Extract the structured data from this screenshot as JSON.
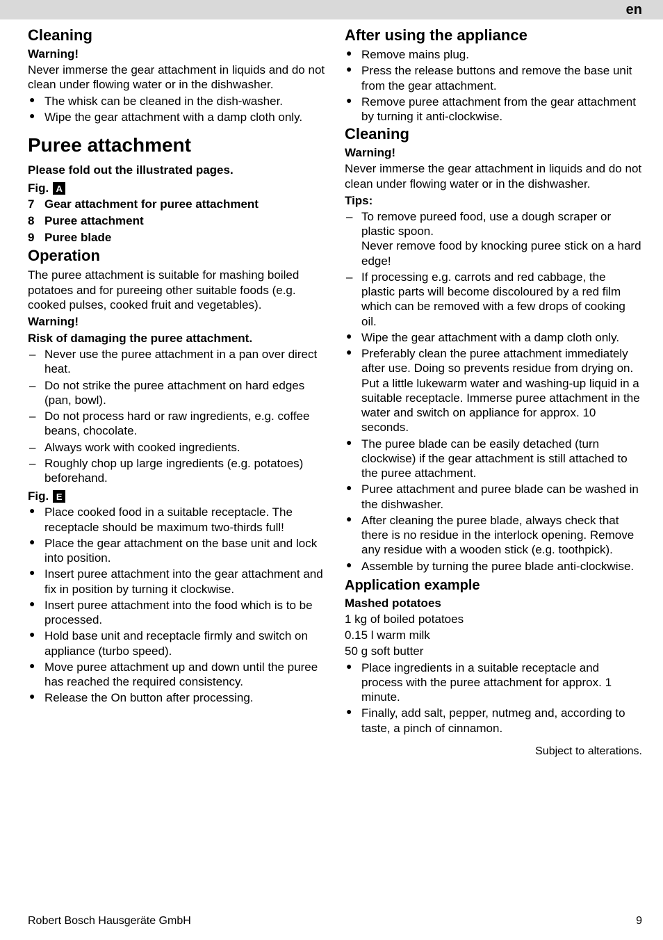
{
  "header": {
    "lang": "en"
  },
  "left": {
    "cleaning_h": "Cleaning",
    "warning_h": "Warning!",
    "cleaning_p": "Never immerse the gear attachment in liquids and do not clean under flowing water or in the dishwasher.",
    "cleaning_b1": "The whisk can be cleaned in the dish-washer.",
    "cleaning_b2": "Wipe the gear attachment with a damp cloth only.",
    "puree_h": "Puree attachment",
    "fold_p": "Please fold out the illustrated pages.",
    "fig_a": "Fig.",
    "fig_a_letter": "A",
    "item7_n": "7",
    "item7": "Gear attachment for puree attachment",
    "item8_n": "8",
    "item8": "Puree attachment",
    "item9_n": "9",
    "item9": "Puree blade",
    "operation_h": "Operation",
    "operation_p": "The puree attachment is suitable for mashing boiled potatoes and for pureeing other suitable foods (e.g. cooked pulses, cooked fruit and vegetables).",
    "warning2_h": "Warning!",
    "risk_p": "Risk of damaging the puree attachment.",
    "risk_d1": "Never use the puree attachment in a pan over direct heat.",
    "risk_d2": "Do not strike the puree attachment on hard edges (pan, bowl).",
    "risk_d3": "Do not process hard or raw ingredients, e.g. coffee beans, chocolate.",
    "risk_d4": "Always work with cooked ingredients.",
    "risk_d5": "Roughly chop up large ingredients (e.g. potatoes) beforehand.",
    "fig_e": "Fig.",
    "fig_e_letter": "E",
    "op_b1": "Place cooked food in a suitable receptacle. The receptacle should be maximum two-thirds full!",
    "op_b2": "Place the gear attachment on the base unit and lock into position.",
    "op_b3": "Insert puree attachment into the gear attachment and fix in position by turning it clockwise.",
    "op_b4": "Insert puree attachment into the food which is to be processed.",
    "op_b5": "Hold base unit and receptacle firmly and switch on appliance (turbo speed).",
    "op_b6": "Move puree attachment up and down until the puree has reached the required consistency.",
    "op_b7": "Release the On button after processing."
  },
  "right": {
    "after_h": "After using the appliance",
    "after_b1": "Remove mains plug.",
    "after_b2": "Press the release buttons and remove the base unit from the gear attachment.",
    "after_b3": "Remove puree attachment from the gear attachment by turning it anti-clockwise.",
    "cleaning2_h": "Cleaning",
    "warning3_h": "Warning!",
    "cleaning2_p": "Never immerse the gear attachment in liquids and do not clean under flowing water or in the dishwasher.",
    "tips_h": "Tips:",
    "tip_d1a": "To remove pureed food, use a dough scraper or plastic spoon.",
    "tip_d1b": "Never remove food by knocking puree stick on a hard edge!",
    "tip_d2": "If processing e.g. carrots and red cabbage, the plastic parts will become discoloured by a red film which can be removed with a few drops of cooking oil.",
    "tip_b1": "Wipe the gear attachment with a damp cloth only.",
    "tip_b2a": "Preferably clean the puree attachment immediately after use. Doing so prevents residue from drying on.",
    "tip_b2b": "Put a little lukewarm water and washing-up liquid in a suitable receptacle. Immerse puree attachment in the water and switch on appliance for approx. 10 seconds.",
    "tip_b3": "The puree blade can be easily detached (turn clockwise) if the gear attachment is still attached to the puree attachment.",
    "tip_b4": "Puree attachment and puree blade can be washed in the dishwasher.",
    "tip_b5": "After cleaning the puree blade, always check that there is no residue in the interlock opening. Remove any residue with a wooden stick (e.g. toothpick).",
    "tip_b6": "Assemble by turning the puree blade anti-clockwise.",
    "app_h": "Application example",
    "mashed_h": "Mashed potatoes",
    "ing1": "1 kg of boiled potatoes",
    "ing2": "0.15 l warm milk",
    "ing3": "50 g soft butter",
    "recipe_b1": "Place ingredients in a suitable receptacle and process with the puree attachment for approx. 1 minute.",
    "recipe_b2": "Finally, add salt, pepper, nutmeg and, according to taste, a pinch of cinnamon.",
    "alterations": "Subject to alterations."
  },
  "footer": {
    "company": "Robert Bosch Hausgeräte GmbH",
    "page": "9"
  }
}
